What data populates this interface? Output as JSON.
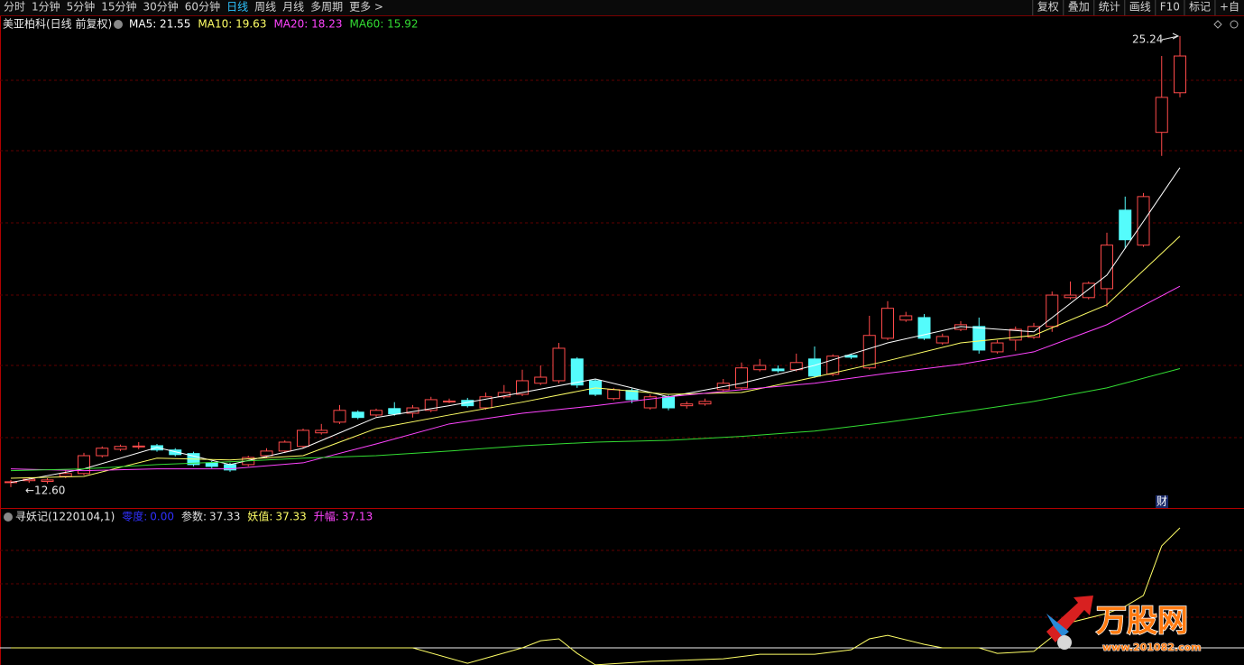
{
  "toolbar": {
    "left": [
      "分时",
      "1分钟",
      "5分钟",
      "15分钟",
      "30分钟",
      "60分钟",
      "日线",
      "周线",
      "月线",
      "多周期",
      "更多 >"
    ],
    "active": 6,
    "right": [
      "复权",
      "叠加",
      "统计",
      "画线",
      "F10",
      "标记",
      "+自"
    ]
  },
  "chart_data": {
    "type": "candlestick",
    "title": "美亚柏科(日线 前复权)",
    "ylim": [
      12.09,
      25.49
    ],
    "up_color": "#ff4a4a",
    "down_color": "#54fcfc",
    "candles": [
      [
        12.73,
        12.8,
        12.6,
        12.75
      ],
      [
        12.78,
        12.88,
        12.72,
        12.82
      ],
      [
        12.76,
        12.85,
        12.7,
        12.8
      ],
      [
        12.9,
        13.06,
        12.85,
        12.98
      ],
      [
        12.98,
        13.56,
        12.93,
        13.48
      ],
      [
        13.48,
        13.74,
        13.43,
        13.69
      ],
      [
        13.66,
        13.79,
        13.61,
        13.74
      ],
      [
        13.74,
        13.86,
        13.66,
        13.75
      ],
      [
        13.76,
        13.81,
        13.59,
        13.64
      ],
      [
        13.64,
        13.69,
        13.46,
        13.51
      ],
      [
        13.54,
        13.59,
        13.18,
        13.23
      ],
      [
        13.28,
        13.33,
        13.13,
        13.18
      ],
      [
        13.23,
        13.28,
        13.03,
        13.08
      ],
      [
        13.23,
        13.48,
        13.18,
        13.43
      ],
      [
        13.48,
        13.69,
        13.43,
        13.61
      ],
      [
        13.61,
        13.91,
        13.56,
        13.86
      ],
      [
        13.74,
        14.24,
        13.69,
        14.19
      ],
      [
        14.12,
        14.37,
        14.07,
        14.19
      ],
      [
        14.42,
        14.9,
        14.37,
        14.75
      ],
      [
        14.7,
        14.75,
        14.5,
        14.55
      ],
      [
        14.62,
        14.8,
        14.57,
        14.75
      ],
      [
        14.8,
        14.98,
        14.6,
        14.65
      ],
      [
        14.67,
        14.9,
        14.55,
        14.82
      ],
      [
        14.75,
        15.13,
        14.7,
        15.05
      ],
      [
        15.0,
        15.08,
        14.95,
        15.01
      ],
      [
        15.03,
        15.1,
        14.83,
        14.88
      ],
      [
        14.82,
        15.25,
        14.77,
        15.13
      ],
      [
        15.13,
        15.46,
        15.08,
        15.25
      ],
      [
        15.2,
        15.89,
        15.15,
        15.58
      ],
      [
        15.51,
        16.01,
        15.46,
        15.68
      ],
      [
        15.58,
        16.64,
        15.51,
        16.49
      ],
      [
        16.19,
        16.24,
        15.38,
        15.46
      ],
      [
        15.58,
        15.63,
        15.15,
        15.2
      ],
      [
        15.08,
        15.38,
        15.03,
        15.33
      ],
      [
        15.31,
        15.36,
        14.95,
        15.05
      ],
      [
        14.82,
        15.2,
        14.77,
        15.13
      ],
      [
        15.13,
        15.18,
        14.75,
        14.82
      ],
      [
        14.88,
        15.0,
        14.8,
        14.93
      ],
      [
        14.93,
        15.08,
        14.88,
        15.0
      ],
      [
        15.33,
        15.63,
        15.28,
        15.51
      ],
      [
        15.38,
        16.09,
        15.33,
        15.94
      ],
      [
        15.89,
        16.19,
        15.84,
        16.01
      ],
      [
        15.91,
        16.01,
        15.81,
        15.86
      ],
      [
        15.89,
        16.34,
        15.84,
        16.09
      ],
      [
        16.19,
        16.54,
        15.66,
        15.71
      ],
      [
        15.76,
        16.32,
        15.71,
        16.27
      ],
      [
        16.29,
        16.34,
        16.19,
        16.24
      ],
      [
        15.94,
        17.4,
        15.89,
        16.85
      ],
      [
        16.77,
        17.81,
        16.72,
        17.61
      ],
      [
        17.28,
        17.51,
        17.23,
        17.4
      ],
      [
        17.35,
        17.45,
        16.72,
        16.77
      ],
      [
        16.64,
        16.9,
        16.59,
        16.82
      ],
      [
        17.02,
        17.25,
        16.97,
        17.15
      ],
      [
        17.1,
        17.35,
        16.34,
        16.44
      ],
      [
        16.39,
        16.72,
        16.34,
        16.64
      ],
      [
        16.72,
        17.1,
        16.42,
        17.02
      ],
      [
        16.8,
        17.2,
        16.75,
        17.1
      ],
      [
        17.1,
        18.08,
        16.95,
        17.98
      ],
      [
        17.91,
        18.36,
        17.86,
        17.98
      ],
      [
        17.91,
        18.36,
        17.86,
        18.31
      ],
      [
        18.16,
        19.73,
        17.66,
        19.38
      ],
      [
        20.36,
        20.74,
        19.28,
        19.53
      ],
      [
        19.38,
        20.84,
        19.33,
        20.74
      ],
      [
        22.54,
        24.68,
        21.88,
        23.52
      ],
      [
        23.65,
        25.24,
        23.52,
        24.68
      ]
    ],
    "ma_x": [
      0,
      4,
      8,
      12,
      16,
      20,
      24,
      28,
      32,
      36,
      40,
      44,
      48,
      52,
      56,
      60,
      64
    ],
    "series": [
      {
        "name": "MA5: 21.55",
        "color": "#ffffff",
        "values": [
          12.73,
          13.11,
          13.71,
          13.23,
          13.69,
          14.55,
          14.88,
          15.25,
          15.63,
          15.13,
          15.51,
          16.01,
          16.64,
          17.1,
          16.95,
          18.54,
          21.55
        ]
      },
      {
        "name": "MA10: 19.63",
        "color": "#ffff66",
        "values": [
          12.85,
          12.9,
          13.41,
          13.36,
          13.48,
          14.24,
          14.62,
          14.98,
          15.38,
          15.2,
          15.25,
          15.68,
          16.14,
          16.64,
          16.85,
          17.71,
          19.63
        ]
      },
      {
        "name": "MA20: 18.23",
        "color": "#ff44ff",
        "values": [
          13.11,
          13.06,
          13.11,
          13.11,
          13.28,
          13.81,
          14.37,
          14.67,
          14.88,
          15.13,
          15.33,
          15.51,
          15.79,
          16.04,
          16.39,
          17.15,
          18.23
        ]
      },
      {
        "name": "MA60: 15.92",
        "color": "#33dd33",
        "values": [
          13.06,
          13.11,
          13.23,
          13.31,
          13.41,
          13.48,
          13.61,
          13.76,
          13.86,
          13.91,
          14.02,
          14.17,
          14.42,
          14.7,
          15.0,
          15.38,
          15.92
        ]
      }
    ],
    "high_label": "25.24",
    "low_label": "←12.60",
    "marker": "财"
  },
  "indicator": {
    "title": "寻妖记(1220104,1)",
    "ylim": [
      -5.33,
      42.94
    ],
    "legend": [
      {
        "name": "零度:",
        "value": 0,
        "value_label": "0.00",
        "color": "#3030ff"
      },
      {
        "name": "参数:",
        "value": 37.33,
        "color": "#e0e0e0"
      },
      {
        "name": "妖值:",
        "value": 37.33,
        "color": "#ffff66"
      },
      {
        "name": "升幅:",
        "value": 37.13,
        "color": "#ff44ff"
      }
    ],
    "x": [
      0,
      22,
      25,
      28,
      29,
      30,
      31,
      32,
      35,
      39,
      41,
      44,
      46,
      47,
      48,
      50,
      51,
      53,
      54,
      56,
      57,
      58,
      60,
      61,
      62,
      63,
      64
    ],
    "values": [
      0,
      0,
      -4.8,
      0,
      2.2,
      2.8,
      -1.7,
      -5.3,
      -4.2,
      -3.4,
      -2.0,
      -2.0,
      -0.6,
      2.8,
      3.9,
      1.1,
      0,
      0,
      -1.7,
      -1.1,
      3.4,
      7.9,
      10.7,
      12.9,
      16.3,
      31.7,
      37.33
    ]
  },
  "watermark": {
    "logo": "万股网",
    "url": "www.201082.com"
  }
}
